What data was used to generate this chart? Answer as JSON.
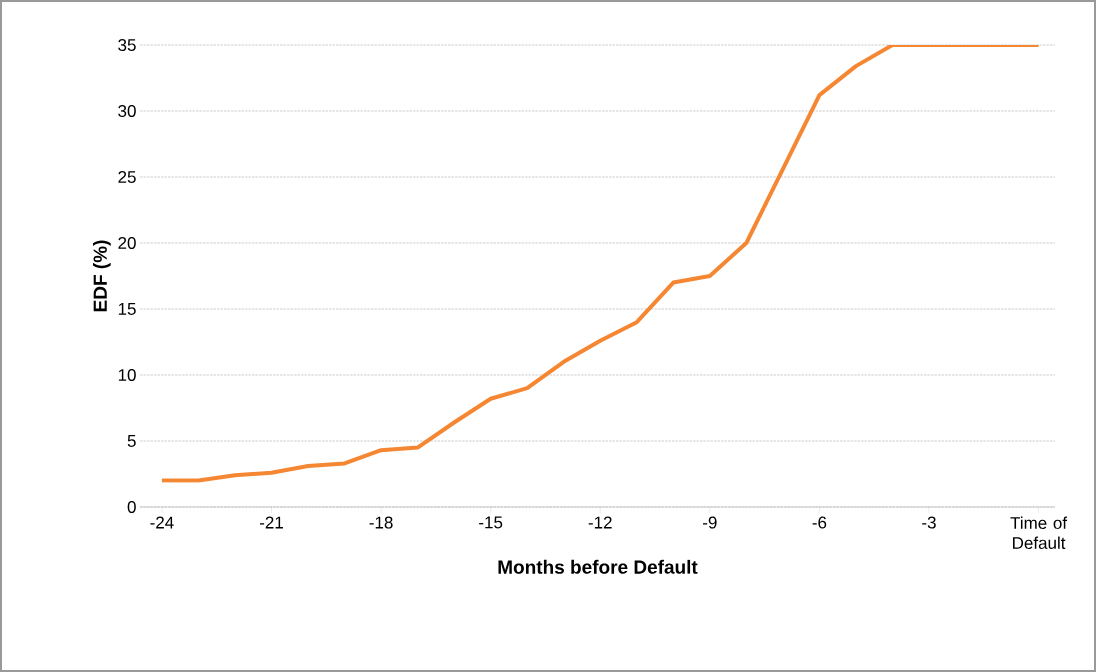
{
  "chart_data": {
    "type": "line",
    "xlabel": "Months before Default",
    "ylabel": "EDF (%)",
    "categories": [
      "-24",
      null,
      null,
      "-21",
      null,
      null,
      "-18",
      null,
      null,
      "-15",
      null,
      null,
      "-12",
      null,
      null,
      "-9",
      null,
      null,
      "-6",
      null,
      null,
      "-3",
      null,
      null,
      "Time of Default"
    ],
    "series": [
      {
        "color": "#f58733",
        "values": [
          2.0,
          2.0,
          2.4,
          2.6,
          3.1,
          3.3,
          4.3,
          4.5,
          6.4,
          8.2,
          9.0,
          11.0,
          12.6,
          14.0,
          17.0,
          17.5,
          20.0,
          25.6,
          31.2,
          33.4,
          35,
          35,
          35,
          35,
          35
        ]
      }
    ],
    "ylim": [
      0,
      35
    ],
    "yticks": [
      0,
      5,
      10,
      15,
      20,
      25,
      30,
      35
    ],
    "grid": "y",
    "marker": "none",
    "line_style": "solid"
  }
}
